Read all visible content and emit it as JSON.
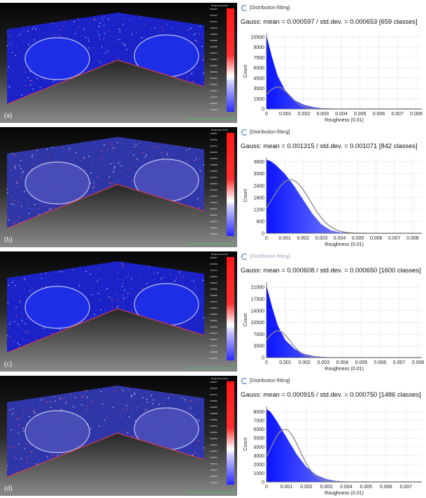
{
  "colors": {
    "bar_start": "#0a14ff",
    "bar_end": "#e8ecff",
    "gauss_curve": "#888888",
    "scale_high": "#ff2020",
    "scale_low": "#2a2aff"
  },
  "panels": [
    {
      "letter": "(a)",
      "header": "[Distribution fitting]",
      "header_faded": false,
      "gauss_text": "Gauss: mean = 0.000597 / std.dev. = 0.000653 [659 classes]",
      "scale_title": "Roughness (0.01)",
      "scale_values": [
        "0.008127",
        "0.007620",
        "0.007112",
        "0.006604",
        "0.006096",
        "0.005588",
        "0.005080",
        "0.004572",
        "0.004064",
        "0.003556",
        "0.003048",
        "0.002540",
        "0.002032",
        "0.001524",
        "0.001016",
        "0.000508",
        "0.000000"
      ],
      "cloud_hue": "blue"
    },
    {
      "letter": "(b)",
      "header": "[Distribution fitting]",
      "header_faded": false,
      "gauss_text": "Gauss: mean = 0.001315 / std.dev. = 0.001071 [842 classes]",
      "scale_title": "Roughness (0.01)",
      "scale_values": [
        "0.008127",
        "0.007620",
        "0.007112",
        "0.006604",
        "0.006096",
        "0.005588",
        "0.005080",
        "0.004572",
        "0.004064",
        "0.003556",
        "0.003048",
        "0.002540",
        "0.002032",
        "0.001524",
        "0.001016",
        "0.000508",
        "0.000000"
      ],
      "cloud_hue": "mixed"
    },
    {
      "letter": "(c)",
      "header": "[Distribution fitting]",
      "header_faded": true,
      "gauss_text": "Gauss: mean = 0.000608 / std.dev. = 0.000650 [1600 classes]",
      "scale_title": "Roughness (0.01)",
      "scale_values": [
        "0.008127",
        "0.007620",
        "0.007112",
        "0.006604",
        "0.006096",
        "0.005588",
        "0.005080",
        "0.004572",
        "0.004064",
        "0.003556",
        "0.003048",
        "0.002540",
        "0.002032",
        "0.001524",
        "0.001016",
        "0.000508",
        "0.000000"
      ],
      "cloud_hue": "blue"
    },
    {
      "letter": "(d)",
      "header": "[Distribution fitting]",
      "header_faded": false,
      "gauss_text": "Gauss: mean = 0.000915 / std.dev. = 0.000750 [1486 classes]",
      "scale_title": "Roughness (0.01)",
      "scale_values": [
        "0.008127",
        "0.007620",
        "0.007112",
        "0.006604",
        "0.006096",
        "0.005588",
        "0.005080",
        "0.004572",
        "0.004064",
        "0.003556",
        "0.003048",
        "0.002540",
        "0.002032",
        "0.001524",
        "0.001016",
        "0.000508",
        "0.000000"
      ],
      "cloud_hue": "mixed"
    }
  ],
  "chart_data": [
    {
      "type": "area",
      "xlabel": "Roughness (0.01)",
      "ylabel": "Count",
      "xlim": [
        0,
        0.0083
      ],
      "ylim": [
        0,
        11000
      ],
      "xticks": [
        "0",
        "0.001",
        "0.002",
        "0.003",
        "0.004",
        "0.005",
        "0.006",
        "0.007",
        "0.008"
      ],
      "yticks": [
        "0",
        "1500",
        "3000",
        "4500",
        "6000",
        "7500",
        "9000",
        "10500"
      ],
      "histogram": {
        "x": [
          0,
          0.0003,
          0.0006,
          0.001,
          0.0015,
          0.002,
          0.0025,
          0.003,
          0.004,
          0.005,
          0.008
        ],
        "y": [
          10700,
          7500,
          4800,
          2700,
          1300,
          600,
          270,
          110,
          30,
          8,
          0
        ]
      },
      "gauss": {
        "mean": 0.000597,
        "std": 0.000653,
        "peak": 3200
      }
    },
    {
      "type": "area",
      "xlabel": "Roughness (0.01)",
      "ylabel": "Count",
      "xlim": [
        0,
        0.0085
      ],
      "ylim": [
        0,
        3800
      ],
      "xticks": [
        "0",
        "0.001",
        "0.002",
        "0.003",
        "0.004",
        "0.005",
        "0.006",
        "0.007",
        "0.008"
      ],
      "yticks": [
        "0",
        "600",
        "1200",
        "1800",
        "2400",
        "3000",
        "3600"
      ],
      "histogram": {
        "x": [
          0,
          0.0002,
          0.0005,
          0.001,
          0.0015,
          0.002,
          0.0025,
          0.003,
          0.0035,
          0.004,
          0.005,
          0.008
        ],
        "y": [
          3700,
          3650,
          3450,
          3000,
          2400,
          1700,
          1000,
          450,
          160,
          50,
          8,
          0
        ]
      },
      "gauss": {
        "mean": 0.001315,
        "std": 0.001071,
        "peak": 2700
      }
    },
    {
      "type": "area",
      "xlabel": "Roughness (0.01)",
      "ylabel": "Count",
      "xlim": [
        0,
        0.0082
      ],
      "ylim": [
        0,
        22500
      ],
      "xticks": [
        "0",
        "0.001",
        "0.002",
        "0.003",
        "0.004",
        "0.005",
        "0.006",
        "0.007",
        "0.008"
      ],
      "yticks": [
        "0",
        "3500",
        "7000",
        "10500",
        "14000",
        "17500",
        "21000"
      ],
      "histogram": {
        "x": [
          0,
          0.0003,
          0.0006,
          0.001,
          0.0015,
          0.002,
          0.0025,
          0.003,
          0.004,
          0.005,
          0.008
        ],
        "y": [
          21500,
          15000,
          9500,
          5200,
          2500,
          1100,
          450,
          170,
          40,
          10,
          0
        ]
      },
      "gauss": {
        "mean": 0.000608,
        "std": 0.00065,
        "peak": 8000
      }
    },
    {
      "type": "area",
      "xlabel": "Roughness (0.01)",
      "ylabel": "Count",
      "xlim": [
        0,
        0.0078
      ],
      "ylim": [
        0,
        8600
      ],
      "xticks": [
        "0",
        "0.001",
        "0.002",
        "0.003",
        "0.004",
        "0.005",
        "0.006",
        "0.007"
      ],
      "yticks": [
        "0",
        "1000",
        "2000",
        "3000",
        "4000",
        "5000",
        "6000",
        "7000",
        "8000"
      ],
      "histogram": {
        "x": [
          0,
          0.0002,
          0.0005,
          0.001,
          0.0015,
          0.002,
          0.0025,
          0.003,
          0.0035,
          0.004,
          0.005,
          0.0078
        ],
        "y": [
          8300,
          8000,
          7000,
          5100,
          3200,
          1700,
          800,
          330,
          120,
          40,
          5,
          0
        ]
      },
      "gauss": {
        "mean": 0.000915,
        "std": 0.00075,
        "peak": 6000
      }
    }
  ]
}
